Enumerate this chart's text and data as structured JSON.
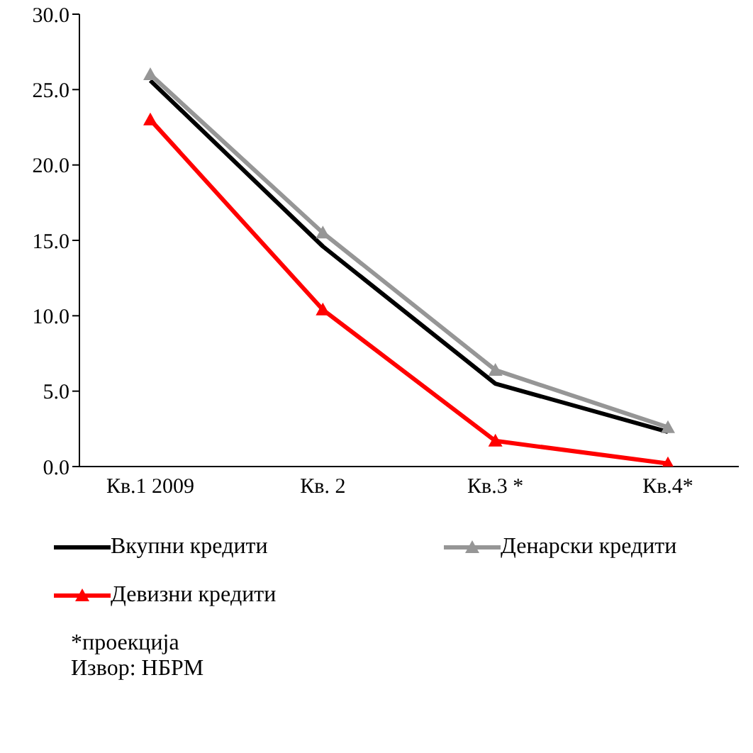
{
  "chart_data": {
    "type": "line",
    "categories": [
      "Кв.1 2009",
      "Кв. 2",
      "Кв.3 *",
      "Кв.4*"
    ],
    "series": [
      {
        "name": "Вкупни кредити",
        "color": "#000000",
        "marker": "none",
        "values": [
          25.6,
          14.6,
          5.5,
          2.3
        ]
      },
      {
        "name": "Денарски кредити",
        "color": "#969696",
        "marker": "triangle",
        "values": [
          26.0,
          15.5,
          6.4,
          2.6
        ]
      },
      {
        "name": "Девизни кредити",
        "color": "#ff0000",
        "marker": "triangle",
        "values": [
          23.0,
          10.4,
          1.7,
          0.2
        ]
      }
    ],
    "ylim": [
      0,
      30
    ],
    "yticks": [
      {
        "value": 0,
        "label": "0.0"
      },
      {
        "value": 5,
        "label": "5.0"
      },
      {
        "value": 10,
        "label": "10.0"
      },
      {
        "value": 15,
        "label": "15.0"
      },
      {
        "value": 20,
        "label": "20.0"
      },
      {
        "value": 25,
        "label": "25.0"
      },
      {
        "value": 30,
        "label": "30.0"
      }
    ],
    "grid": false,
    "legend": "bottom",
    "line_style": "solid",
    "annotations": [
      "*проекција",
      "Извор: НБРМ"
    ]
  }
}
